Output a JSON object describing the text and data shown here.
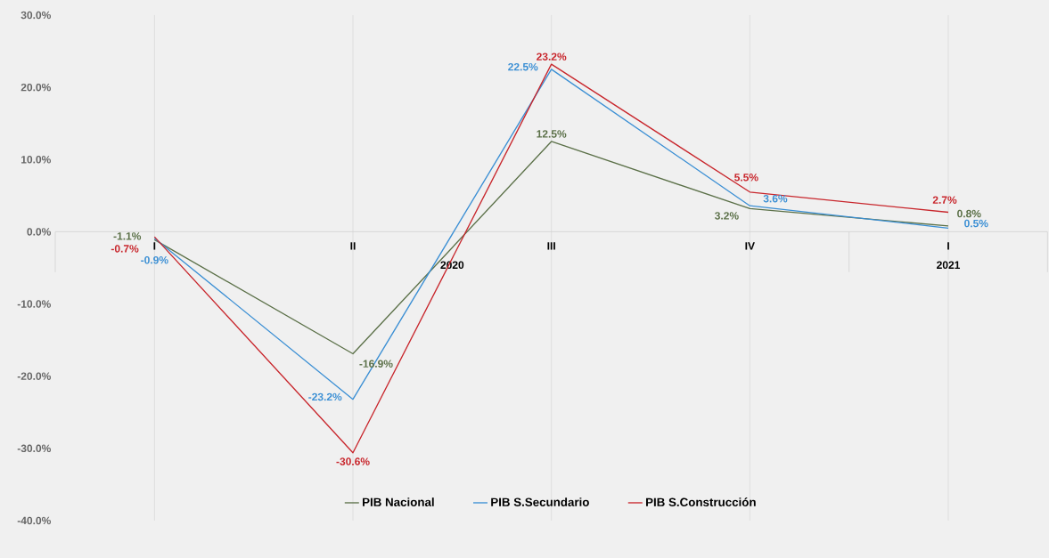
{
  "chart_data": {
    "type": "line",
    "categories": [
      "I",
      "II",
      "III",
      "IV",
      "I"
    ],
    "series": [
      {
        "name": "PIB Nacional",
        "color": "#5b7048",
        "values": [
          -1.1,
          -16.9,
          12.5,
          3.2,
          0.8
        ],
        "value_labels": [
          "-1.1%",
          "-16.9%",
          "12.5%",
          "3.2%",
          "0.8%"
        ]
      },
      {
        "name": "PIB S.Secundario",
        "color": "#3b8fd4",
        "values": [
          -0.9,
          -23.2,
          22.5,
          3.6,
          0.5
        ],
        "value_labels": [
          "-0.9%",
          "-23.2%",
          "22.5%",
          "3.6%",
          "0.5%"
        ]
      },
      {
        "name": "PIB S.Construcción",
        "color": "#c8262c",
        "values": [
          -0.7,
          -30.6,
          23.2,
          5.5,
          2.7
        ],
        "value_labels": [
          "-0.7%",
          "-30.6%",
          "23.2%",
          "5.5%",
          "2.7%"
        ]
      }
    ],
    "ylim": [
      -40,
      30
    ],
    "yticks": [
      {
        "value": -40,
        "label": "-40.0%"
      },
      {
        "value": -30,
        "label": "-30.0%"
      },
      {
        "value": -20,
        "label": "-20.0%"
      },
      {
        "value": -10,
        "label": "-10.0%"
      },
      {
        "value": 0,
        "label": "0.0%"
      },
      {
        "value": 10,
        "label": "10.0%"
      },
      {
        "value": 20,
        "label": "20.0%"
      },
      {
        "value": 30,
        "label": "30.0%"
      }
    ],
    "annotations": [
      "2020",
      "2021"
    ],
    "grid": "x",
    "legend": "bottom",
    "marker": "none",
    "line_style": "solid"
  }
}
